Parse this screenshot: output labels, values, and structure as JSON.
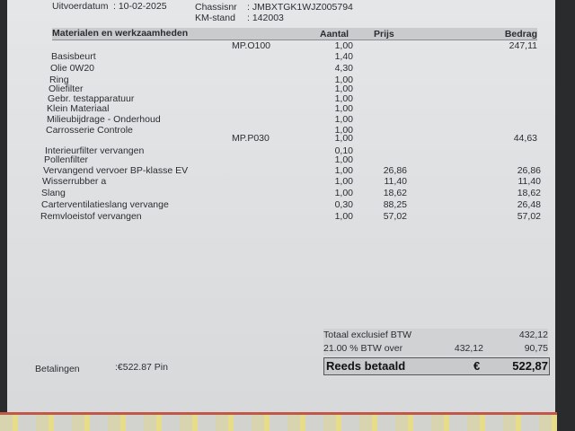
{
  "header": {
    "uitvoerdatum_label": "Uitvoerdatum",
    "uitvoerdatum_value": ": 10-02-2025",
    "chassisnr_label": "Chassisnr",
    "chassisnr_value": ": JMBXTGK1WJZ005794",
    "kmstand_label": "KM-stand",
    "kmstand_value": ": 142003"
  },
  "table": {
    "columns": [
      "Materialen en werkzaamheden",
      "Aantal",
      "Prijs",
      "Bedrag"
    ],
    "rows": [
      {
        "desc": "",
        "code": "MP.O100",
        "aantal": "1,00",
        "prijs": "",
        "bedrag": "247,11"
      },
      {
        "desc": "Basisbeurt",
        "code": "",
        "aantal": "1,40",
        "prijs": "",
        "bedrag": ""
      },
      {
        "desc": "Olie 0W20",
        "code": "",
        "aantal": "4,30",
        "prijs": "",
        "bedrag": ""
      },
      {
        "desc": "Ring",
        "code": "",
        "aantal": "1,00",
        "prijs": "",
        "bedrag": ""
      },
      {
        "desc": "Oliefilter",
        "code": "",
        "aantal": "1,00",
        "prijs": "",
        "bedrag": ""
      },
      {
        "desc": "Gebr. testapparatuur",
        "code": "",
        "aantal": "1,00",
        "prijs": "",
        "bedrag": ""
      },
      {
        "desc": "Klein Materiaal",
        "code": "",
        "aantal": "1,00",
        "prijs": "",
        "bedrag": ""
      },
      {
        "desc": "Milieubijdrage - Onderhoud",
        "code": "",
        "aantal": "1,00",
        "prijs": "",
        "bedrag": ""
      },
      {
        "desc": "Carrosserie Controle",
        "code": "",
        "aantal": "1,00",
        "prijs": "",
        "bedrag": ""
      },
      {
        "desc": "",
        "code": "MP.P030",
        "aantal": "1,00",
        "prijs": "",
        "bedrag": "44,63"
      },
      {
        "desc": "Interieurfilter vervangen",
        "code": "",
        "aantal": "0,10",
        "prijs": "",
        "bedrag": ""
      },
      {
        "desc": "Pollenfilter",
        "code": "",
        "aantal": "1,00",
        "prijs": "",
        "bedrag": ""
      },
      {
        "desc": "Vervangend vervoer BP-klasse EV",
        "code": "",
        "aantal": "1,00",
        "prijs": "26,86",
        "bedrag": "26,86"
      },
      {
        "desc": "Wisserrubber a",
        "code": "",
        "aantal": "1,00",
        "prijs": "11,40",
        "bedrag": "11,40"
      },
      {
        "desc": "Slang",
        "code": "",
        "aantal": "1,00",
        "prijs": "18,62",
        "bedrag": "18,62"
      },
      {
        "desc": "Carterventilatieslang vervange",
        "code": "",
        "aantal": "0,30",
        "prijs": "88,25",
        "bedrag": "26,48"
      },
      {
        "desc": "Remvloeistof vervangen",
        "code": "",
        "aantal": "1,00",
        "prijs": "57,02",
        "bedrag": "57,02"
      }
    ]
  },
  "totals": {
    "excl_label": "Totaal exclusief BTW",
    "excl_value": "432,12",
    "btw_label": "21.00 % BTW over",
    "btw_base": "432,12",
    "btw_value": "90,75",
    "paid_label": "Reeds betaald",
    "paid_currency": "€",
    "paid_value": "522,87"
  },
  "payments": {
    "label": "Betalingen",
    "value": ":€522.87 Pin"
  }
}
